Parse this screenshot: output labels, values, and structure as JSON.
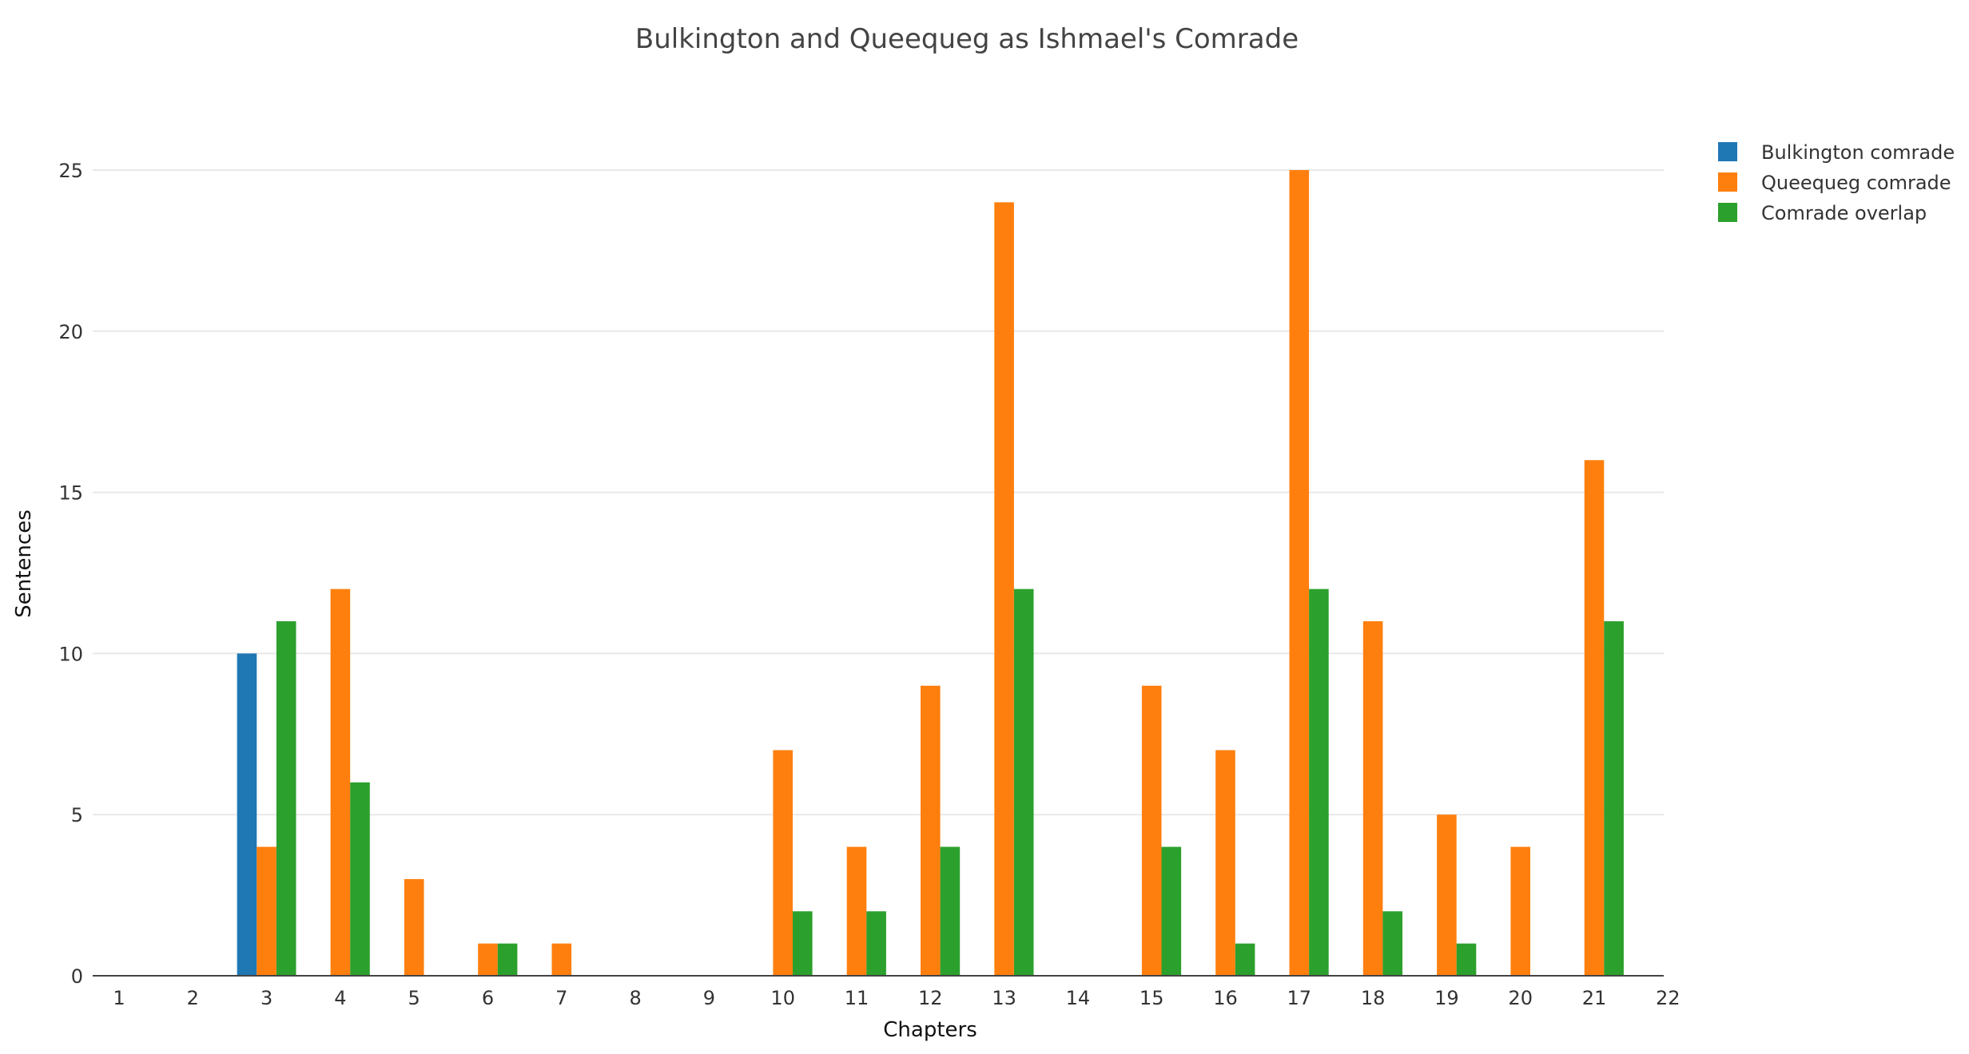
{
  "chart_data": {
    "type": "bar",
    "title": "Bulkington and Queequeg as Ishmael's Comrade",
    "xlabel": "Chapters",
    "ylabel": "Sentences",
    "categories": [
      "1",
      "2",
      "3",
      "4",
      "5",
      "6",
      "7",
      "8",
      "9",
      "10",
      "11",
      "12",
      "13",
      "14",
      "15",
      "16",
      "17",
      "18",
      "19",
      "20",
      "21",
      "22"
    ],
    "x_ticks": [
      "1",
      "2",
      "3",
      "4",
      "5",
      "6",
      "7",
      "8",
      "9",
      "10",
      "11",
      "12",
      "13",
      "14",
      "15",
      "16",
      "17",
      "18",
      "19",
      "20",
      "21",
      "22"
    ],
    "y_ticks": [
      "0",
      "5",
      "10",
      "15",
      "20",
      "25"
    ],
    "ylim": [
      0,
      27.5
    ],
    "grid": true,
    "legend_position": "top-right",
    "series": [
      {
        "name": "Bulkington comrade",
        "color": "#1f77b4",
        "values": [
          0,
          0,
          10,
          0,
          0,
          0,
          0,
          0,
          0,
          0,
          0,
          0,
          0,
          0,
          0,
          0,
          0,
          0,
          0,
          0,
          0,
          0
        ]
      },
      {
        "name": "Queequeg comrade",
        "color": "#ff7f0e",
        "values": [
          0,
          0,
          4,
          12,
          3,
          1,
          1,
          0,
          0,
          7,
          4,
          9,
          24,
          0,
          9,
          7,
          25,
          11,
          5,
          4,
          16,
          0
        ]
      },
      {
        "name": "Comrade overlap",
        "color": "#2ca02c",
        "values": [
          0,
          0,
          11,
          6,
          0,
          1,
          0,
          0,
          0,
          2,
          2,
          4,
          12,
          0,
          4,
          1,
          12,
          2,
          1,
          0,
          11,
          0
        ]
      }
    ]
  }
}
